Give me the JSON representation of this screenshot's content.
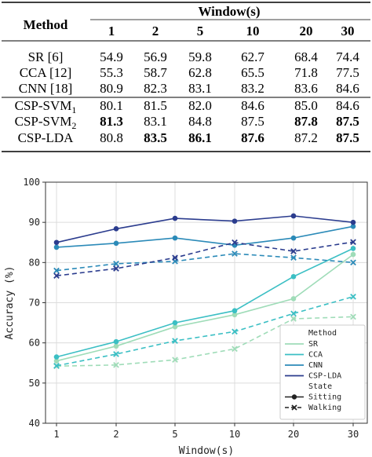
{
  "table": {
    "header_method": "Method",
    "header_window": "Window(s)",
    "windows": [
      "1",
      "2",
      "5",
      "10",
      "20",
      "30"
    ],
    "rows": [
      {
        "method": "SR [6]",
        "values": [
          "54.9",
          "56.9",
          "59.8",
          "62.7",
          "68.4",
          "74.4"
        ],
        "bold": [
          false,
          false,
          false,
          false,
          false,
          false
        ]
      },
      {
        "method": "CCA [12]",
        "values": [
          "55.3",
          "58.7",
          "62.8",
          "65.5",
          "71.8",
          "77.5"
        ],
        "bold": [
          false,
          false,
          false,
          false,
          false,
          false
        ]
      },
      {
        "method": "CNN [18]",
        "values": [
          "80.9",
          "82.3",
          "83.1",
          "83.2",
          "83.6",
          "84.6"
        ],
        "bold": [
          false,
          false,
          false,
          false,
          false,
          false
        ]
      },
      {
        "method": "CSP-SVM",
        "subscript": "1",
        "values": [
          "80.1",
          "81.5",
          "82.0",
          "84.6",
          "85.0",
          "84.6"
        ],
        "bold": [
          false,
          false,
          false,
          false,
          false,
          false
        ]
      },
      {
        "method": "CSP-SVM",
        "subscript": "2",
        "values": [
          "81.3",
          "83.1",
          "84.8",
          "87.5",
          "87.8",
          "87.5"
        ],
        "bold": [
          true,
          false,
          false,
          false,
          true,
          true
        ]
      },
      {
        "method": "CSP-LDA",
        "values": [
          "80.8",
          "83.5",
          "86.1",
          "87.6",
          "87.2",
          "87.5"
        ],
        "bold": [
          false,
          true,
          true,
          true,
          false,
          true
        ]
      }
    ]
  },
  "chart_data": {
    "type": "line",
    "xlabel": "Window(s)",
    "ylabel": "Accuracy (%)",
    "x": [
      "1",
      "2",
      "5",
      "10",
      "20",
      "30"
    ],
    "ylim": [
      40,
      100
    ],
    "yticks": [
      40,
      50,
      60,
      70,
      80,
      90,
      100
    ],
    "grid": true,
    "legend": {
      "placement": "bottom-right",
      "title_method": "Method",
      "methods": [
        "SR",
        "CCA",
        "CNN",
        "CSP-LDA"
      ],
      "title_state": "State",
      "states": [
        "Sitting",
        "Walking"
      ]
    },
    "colors": {
      "SR": "#9fdcb8",
      "CCA": "#3bbfc4",
      "CNN": "#2b8ab8",
      "CSP-LDA": "#2b3c8e"
    },
    "series": [
      {
        "method": "SR",
        "state": "Sitting",
        "values": [
          55.5,
          59.2,
          64.0,
          67.0,
          71.0,
          82.0
        ]
      },
      {
        "method": "SR",
        "state": "Walking",
        "values": [
          54.2,
          54.5,
          55.8,
          58.5,
          66.0,
          66.5
        ]
      },
      {
        "method": "CCA",
        "state": "Sitting",
        "values": [
          56.5,
          60.3,
          65.0,
          68.0,
          76.5,
          83.5
        ]
      },
      {
        "method": "CCA",
        "state": "Walking",
        "values": [
          54.3,
          57.2,
          60.5,
          62.8,
          67.3,
          71.5
        ]
      },
      {
        "method": "CNN",
        "state": "Sitting",
        "values": [
          83.8,
          84.8,
          86.1,
          84.3,
          86.1,
          89.0
        ]
      },
      {
        "method": "CNN",
        "state": "Walking",
        "values": [
          78.0,
          79.7,
          80.3,
          82.2,
          81.2,
          80.0
        ]
      },
      {
        "method": "CSP-LDA",
        "state": "Sitting",
        "values": [
          85.0,
          88.4,
          91.0,
          90.3,
          91.6,
          90.0
        ]
      },
      {
        "method": "CSP-LDA",
        "state": "Walking",
        "values": [
          76.7,
          78.5,
          81.2,
          85.0,
          82.8,
          85.1
        ]
      }
    ]
  }
}
